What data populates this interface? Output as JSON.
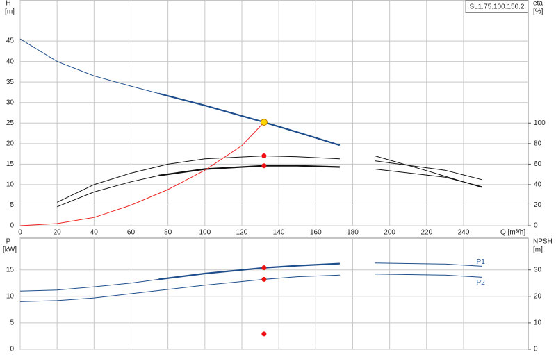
{
  "chart_data": [
    {
      "type": "line",
      "title": "SL1.75.100.150.2",
      "y_label": "H",
      "y_unit": "[m]",
      "y2_label": "eta",
      "y2_unit": "[%]",
      "x_label": "Q [m³/h]",
      "xlim": [
        0,
        275
      ],
      "xticks": [
        0,
        20,
        40,
        60,
        80,
        100,
        120,
        140,
        160,
        180,
        200,
        220,
        240
      ],
      "ylim": [
        0,
        55
      ],
      "yticks": [
        0,
        5,
        10,
        15,
        20,
        25,
        30,
        35,
        40,
        45
      ],
      "y2lim": [
        0,
        220
      ],
      "y2ticks": [
        0,
        20,
        40,
        60,
        80,
        100
      ],
      "grid": true,
      "series": [
        {
          "color": "#1f4e8c",
          "style": "thin",
          "x": [
            0,
            20,
            40,
            60,
            75
          ],
          "values": [
            45.5,
            40,
            36.5,
            34,
            32.2
          ]
        },
        {
          "color": "#1f4e8c",
          "style": "thick",
          "x": [
            75,
            100,
            132,
            150,
            173
          ],
          "values": [
            32.2,
            29.3,
            25.2,
            22.8,
            19.6
          ]
        },
        {
          "color": "#111111",
          "style": "thin",
          "x": [
            20,
            40,
            60,
            80,
            100,
            132,
            150,
            173
          ],
          "values": [
            5.7,
            10,
            12.8,
            15,
            16.3,
            17,
            16.8,
            16.3
          ]
        },
        {
          "color": "#111111",
          "style": "thin",
          "x": [
            20,
            40,
            60,
            75
          ],
          "values": [
            4.6,
            8.2,
            10.7,
            12.2
          ]
        },
        {
          "color": "#111111",
          "style": "thick",
          "x": [
            75,
            100,
            132,
            150,
            173
          ],
          "values": [
            12.2,
            13.8,
            14.6,
            14.6,
            14.3
          ]
        },
        {
          "color": "#ee2222",
          "style": "thin",
          "x": [
            0,
            20,
            40,
            60,
            80,
            100,
            120,
            132
          ],
          "values": [
            0,
            0.5,
            2,
            5,
            8.8,
            13.5,
            19.5,
            25.2
          ]
        },
        {
          "color": "#111111",
          "style": "thin",
          "x": [
            192,
            220,
            250
          ],
          "values": [
            17,
            13.4,
            9.3
          ]
        },
        {
          "color": "#111111",
          "style": "thin",
          "x": [
            192,
            230,
            250
          ],
          "values": [
            15.8,
            13.5,
            11.2
          ]
        },
        {
          "color": "#111111",
          "style": "thin",
          "x": [
            192,
            230,
            250
          ],
          "values": [
            13.8,
            11.8,
            9.5
          ]
        }
      ],
      "points": [
        {
          "x": 132,
          "y": 25.2,
          "color": "#ffd700"
        },
        {
          "x": 132,
          "y": 17,
          "color": "#ee1111"
        },
        {
          "x": 132,
          "y": 14.6,
          "color": "#ee1111"
        }
      ]
    },
    {
      "type": "line",
      "y_label": "P",
      "y_unit": "[kW]",
      "y2_label": "NPSH",
      "y2_unit": "[m]",
      "xlim": [
        0,
        275
      ],
      "xticks": [
        0,
        20,
        40,
        60,
        80,
        100,
        120,
        140,
        160,
        180,
        200,
        220,
        240
      ],
      "ylim": [
        0,
        21
      ],
      "yticks": [
        0,
        5,
        10,
        15
      ],
      "y2lim": [
        0,
        42
      ],
      "y2ticks": [
        0,
        10,
        20,
        30
      ],
      "grid": true,
      "series": [
        {
          "color": "#1f4e8c",
          "style": "thin",
          "x": [
            0,
            20,
            40,
            60,
            75
          ],
          "values": [
            11,
            11.2,
            11.8,
            12.5,
            13.2
          ]
        },
        {
          "color": "#1f4e8c",
          "style": "thick",
          "x": [
            75,
            100,
            132,
            150,
            173
          ],
          "values": [
            13.2,
            14.3,
            15.4,
            15.8,
            16.2
          ]
        },
        {
          "name": "P1",
          "color": "#1f4e8c",
          "style": "thin",
          "x": [
            192,
            230,
            250
          ],
          "values": [
            16.3,
            16.1,
            15.7
          ]
        },
        {
          "color": "#1f4e8c",
          "style": "thin",
          "x": [
            0,
            20,
            40,
            60,
            80,
            100,
            132,
            150,
            173
          ],
          "values": [
            9,
            9.2,
            9.7,
            10.5,
            11.3,
            12.1,
            13.2,
            13.7,
            14
          ]
        },
        {
          "name": "P2",
          "color": "#1f4e8c",
          "style": "thin",
          "x": [
            192,
            230,
            250
          ],
          "values": [
            14.2,
            14,
            13.6
          ]
        }
      ],
      "points": [
        {
          "x": 132,
          "y": 15.4,
          "color": "#ee1111"
        },
        {
          "x": 132,
          "y": 13.2,
          "color": "#ee1111"
        },
        {
          "x": 132,
          "y": 2.9,
          "color": "#ee1111"
        }
      ]
    }
  ]
}
